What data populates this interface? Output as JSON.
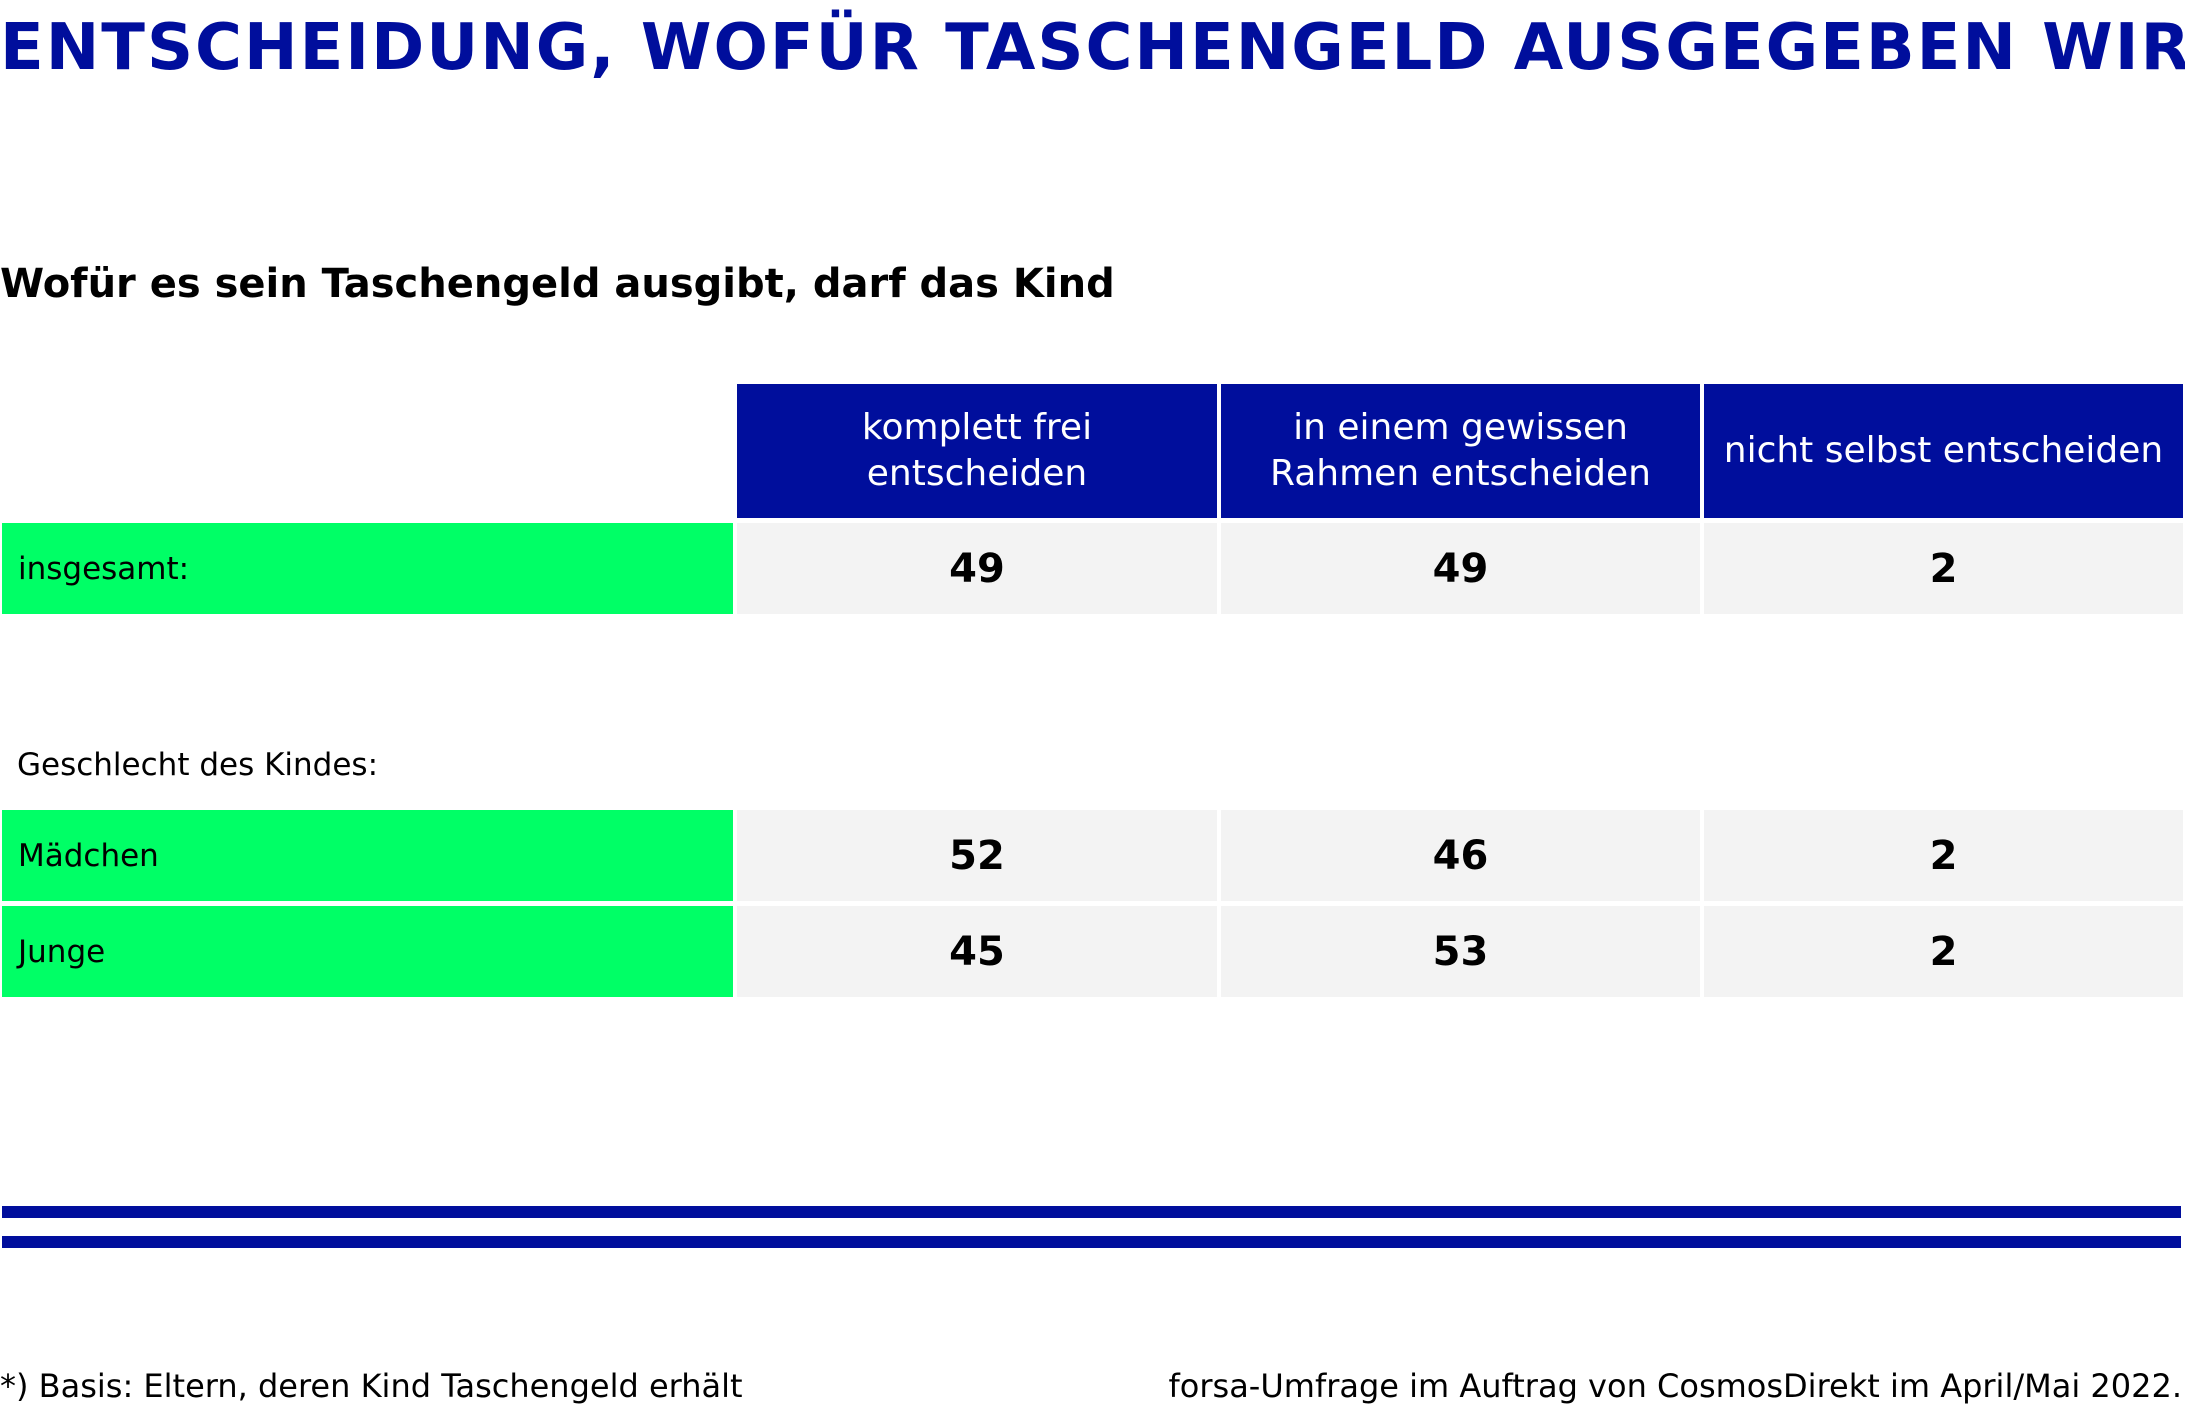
{
  "title": "ENTSCHEIDUNG, WOFÜR TASCHENGELD AUSGEGEBEN WIRD*",
  "subtitle": "Wofür es sein Taschengeld ausgibt, darf das Kind",
  "colors": {
    "accent": "#000e9c",
    "row_label_bg": "#00ff66",
    "cell_bg": "#f3f3f3"
  },
  "chart_data": {
    "type": "table",
    "title": "ENTSCHEIDUNG, WOFÜR TASCHENGELD AUSGEGEBEN WIRD*",
    "subtitle": "Wofür es sein Taschengeld ausgibt, darf das Kind",
    "columns": [
      "komplett frei entscheiden",
      "in einem gewissen\nRahmen entscheiden",
      "nicht selbst entscheiden"
    ],
    "total_row": {
      "label": "insgesamt:",
      "values": [
        "49",
        "49",
        "2"
      ]
    },
    "group_label": "Geschlecht des Kindes:",
    "group_rows": [
      {
        "label": "Mädchen",
        "values": [
          "52",
          "46",
          "2"
        ]
      },
      {
        "label": "Junge",
        "values": [
          "45",
          "53",
          "2"
        ]
      }
    ]
  },
  "footer": {
    "note": "*) Basis: Eltern, deren Kind Taschengeld erhält",
    "source": "forsa-Umfrage im Auftrag von CosmosDirekt im April/Mai 2022."
  }
}
